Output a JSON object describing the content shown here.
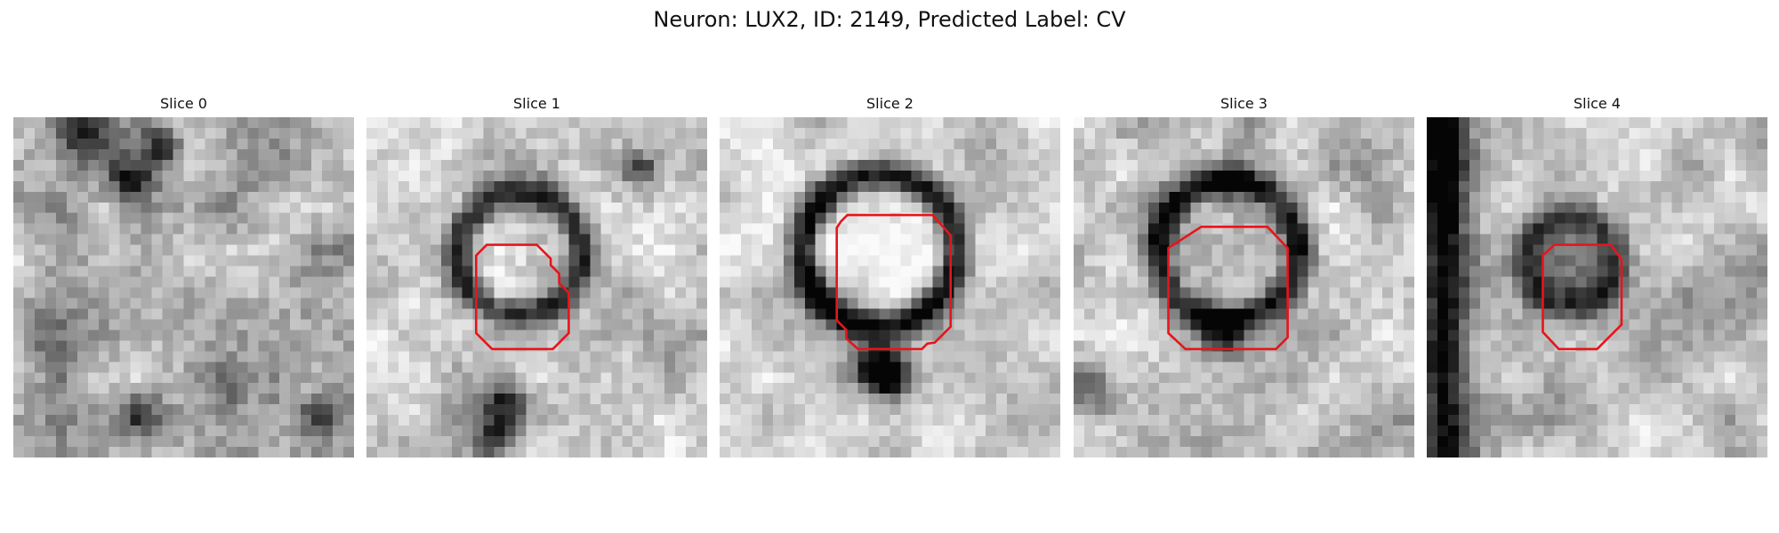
{
  "figure": {
    "title": "Neuron: LUX2, ID: 2149, Predicted Label: CV"
  },
  "panels": [
    {
      "title": "Slice 0"
    },
    {
      "title": "Slice 1"
    },
    {
      "title": "Slice 2"
    },
    {
      "title": "Slice 3"
    },
    {
      "title": "Slice 4"
    }
  ],
  "colors": {
    "contour": "#e8141b",
    "background": "#ffffff"
  }
}
